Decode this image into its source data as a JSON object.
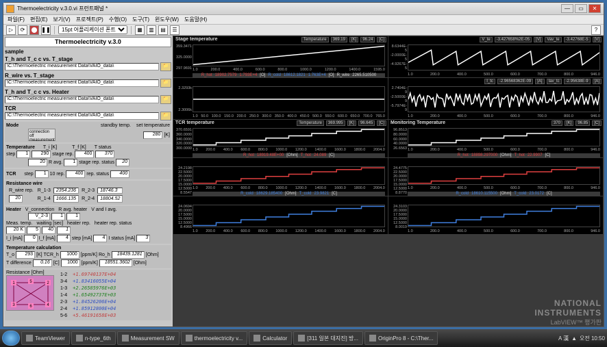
{
  "window": {
    "title": "Thermoelectricity v.3.0.vi 프런트패널 *",
    "menus": [
      "파일(F)",
      "편집(E)",
      "보기(V)",
      "프로젝트(P)",
      "수행(O)",
      "도구(T)",
      "윈도우(W)",
      "도움말(H)"
    ]
  },
  "toolbar": {
    "font": "15pt 어플리케이션 폰트"
  },
  "header": "Thermoelectricity v.3.0",
  "sample_label": "sample",
  "paths": {
    "p1_title": "T_h and T_c c vs. T_stage",
    "p1": "\\C:\\Thermoelectric measurement Data\\VAIO_data\\",
    "p2_title": "R_wire vs. T_stage",
    "p2": "\\C:\\Thermoelectric measurement Data\\VAIO_data\\",
    "p3_title": "T_h and T_c c vs. Heater",
    "p3": "\\C:\\Thermoelectric measurement Data\\VAIO_data\\",
    "p4_title": "TCR",
    "p4": "\\C:\\Thermoelectric measurement Data\\VAIO_data\\"
  },
  "mode": {
    "label": "Mode",
    "opt1": "standby temp.",
    "opt2": "connection off",
    "opt3": "measurement",
    "set_temp_label": "set temperature",
    "set_temp": "280",
    "set_temp_unit": "[K]"
  },
  "temperature": {
    "label": "Temperature",
    "step_label": "step",
    "step": "1",
    "Ti_label": "T_i [K]",
    "Ti": "290",
    "stagerep_label": "stage rep.",
    "stagerep": "20",
    "Tf_label": "T_f [K]",
    "Tf": "400",
    "Ravg_label": "R avg.",
    "Ravg": "1",
    "Tstatus_label": "T status",
    "Tstatus": "370",
    "stagerep_status_label": "stage rep. status",
    "stagerep_status": "20",
    "rep_status_label": "rep. status",
    "rep_status": "400"
  },
  "tcr": {
    "label": "TCR",
    "step": "1",
    "step_label": "step",
    "rep_label": "10 rep.",
    "rep": "400"
  },
  "resistance": {
    "label": "Resistance wire",
    "Rwire_label": "R_wire rep.",
    "Rwire": "20",
    "R13_label": "R_1-3",
    "R13": "2354.236",
    "R23_label": "R_2-3",
    "R23": "18746.3",
    "R14_label": "R_1-4",
    "R14": "1666.135",
    "R24_label": "R_2-4",
    "R24": "18804.52"
  },
  "heater": {
    "label": "Heater",
    "Vconn_label": "V_connection",
    "Vconn": "V_2-3",
    "Ravgheater_label": "R avg. heater",
    "Ravgheater": "1",
    "Vandiavg_label": "V and I avg.",
    "Vandiavg": "1",
    "meastemp_label": "Meas. temp.",
    "meastemp": "20 K",
    "waiting_label": "waiting [sec]",
    "waiting": "5",
    "heaterrep_label": "heater rep.",
    "heaterrep": "40",
    "heaterrep_status_label": "heater rep. status",
    "heaterrep_status": "1",
    "Ii_label": "I_i [mA]",
    "Ii": "0",
    "If_label": "I_f [mA]",
    "If": "4",
    "step_label": "step [mA]",
    "step": "4",
    "Istatus_label": "I status [mA]",
    "Istatus": "3"
  },
  "tempcalc": {
    "label": "Temperature calculation",
    "To_label": "T_o",
    "To": "293",
    "To_unit": "[K]",
    "TCRh_label": "TCR_h",
    "TCRh": "1000",
    "TCRh_unit": "[ppm/K]",
    "Roh_label": "Ro_h",
    "Roh": "18439.1281",
    "Roh_unit": "[Ohm]",
    "Tdiff_label": "T difference",
    "Tdiff": "0.16",
    "Tdiff_unit": "[C]",
    "TCRc": "1000",
    "TCRc_unit": "[ppm/K]",
    "Roc": "18551.3602",
    "Roc_unit": "[Ohm]"
  },
  "res_list": {
    "label": "Resistance [Ohm]",
    "rows": [
      {
        "k": "1-2",
        "v": "+1.69740137E+04"
      },
      {
        "k": "3-4",
        "v": "+1.83416055E+04"
      },
      {
        "k": "1-3",
        "v": "+2.26585976E+03"
      },
      {
        "k": "1-4",
        "v": "+1.65492737E+03"
      },
      {
        "k": "2-3",
        "v": "+1.84526206E+04"
      },
      {
        "k": "2-4",
        "v": "+1.85912800E+04"
      },
      {
        "k": "5-6",
        "v": "+5.46191658E+03"
      }
    ]
  },
  "charts": {
    "c1": {
      "title": "Stage temperature",
      "readout_l": "Temperature",
      "readout_v1": "369.19",
      "readout_u1": "[K]",
      "readout_v2": "96.24",
      "readout_u2": "[C]",
      "y": [
        "359.3471",
        "325.0000",
        "297.9691"
      ],
      "x": [
        "1.0",
        "200.0",
        "400.0",
        "600.0",
        "800.0",
        "1000.0",
        "1200.0",
        "1400.0",
        "1595.0"
      ],
      "color": "#ffffff",
      "type": "line-rising",
      "bottom": [
        {
          "cls": "r",
          "t": "R_hot"
        },
        {
          "cls": "r",
          "t": "18902.7579"
        },
        {
          "cls": "r",
          "t": "1.793E+4"
        },
        {
          "cls": "w",
          "t": "[O]"
        },
        {
          "cls": "b",
          "t": "R_cold"
        },
        {
          "cls": "b",
          "t": "18612.1821"
        },
        {
          "cls": "b",
          "t": "1.763E+4"
        },
        {
          "cls": "w",
          "t": "[O]"
        },
        {
          "cls": "w",
          "t": "R_wire"
        },
        {
          "cls": "w",
          "t": "2265.510500"
        }
      ]
    },
    "c2": {
      "title": "",
      "readout_l": "V_te",
      "readout_v1": "-3.427658%2E-05",
      "readout_u1": "[V]",
      "readout_l2": "Vav_te",
      "readout_v2": "-3.42768E-5",
      "readout_u2": "[V]",
      "y": [
        "8.6344E-5",
        "-2.0000E-5",
        "-4.9267E-5"
      ],
      "x": [
        "1.0",
        "200.0",
        "400.0",
        "500.0",
        "600.0",
        "700.0",
        "800.0",
        "946.0"
      ],
      "color": "#ffffff",
      "type": "sawtooth"
    },
    "c3": {
      "title": "",
      "y": [
        "2.3293k",
        "2.3006k"
      ],
      "x": [
        "1.0",
        "50.0",
        "100.0",
        "150.0",
        "200.0",
        "250.0",
        "300.0",
        "350.0",
        "400.0",
        "450.0",
        "500.0",
        "550.0",
        "600.0",
        "650.0",
        "700.0",
        "765.0"
      ],
      "color": "#ffffff",
      "type": "flat"
    },
    "c4": {
      "title": "",
      "readout_l": "I_tc",
      "readout_v1": "-2.96568362E-09",
      "readout_u1": "[A]",
      "readout_l2": "Iav_tc",
      "readout_v2": "-2.95638E-9",
      "readout_u2": "[A]",
      "y": [
        "2.7404E-9",
        "-2.5000E-9",
        "-5.7974E-9"
      ],
      "x": [
        "1.0",
        "200.0",
        "400.0",
        "500.0",
        "600.0",
        "700.0",
        "800.0",
        "946.0"
      ],
      "color": "#ffffff",
      "type": "noise"
    },
    "c5": {
      "title": "TCR temperature",
      "readout_l": "Temperature",
      "readout_v1": "369.995",
      "readout_u1": "[K]",
      "readout_v2": "96.645",
      "readout_u2": "[C]",
      "y": [
        "370.6591",
        "360.0000",
        "340.0000",
        "320.0000",
        "300.0000"
      ],
      "x": [
        "1.0",
        "200.0",
        "400.0",
        "600.0",
        "800.0",
        "1000.0",
        "1200.0",
        "1400.0",
        "1600.0",
        "1800.0",
        "2004.0"
      ],
      "color": "#ffffff",
      "type": "steps",
      "bottom": [
        {
          "cls": "r",
          "t": "R_hot"
        },
        {
          "cls": "r",
          "t": "18919.48E+00"
        },
        {
          "cls": "w",
          "t": "[Ohm]"
        },
        {
          "cls": "r",
          "t": "T_hot"
        },
        {
          "cls": "r",
          "t": "24.089"
        },
        {
          "cls": "w",
          "t": "[C]"
        }
      ]
    },
    "c6": {
      "title": "Monitoring Temperature",
      "readout_v1": "370",
      "readout_u1": "[K]",
      "readout_v2": "96.85",
      "readout_u2": "[C]",
      "y": [
        "96.8513",
        "80.0000",
        "60.0000",
        "40.0000",
        "26.6563"
      ],
      "x": [
        "1.0",
        "200.0",
        "400.0",
        "500.0",
        "600.0",
        "700.0",
        "800.0",
        "946.0"
      ],
      "color": "#ffffff",
      "type": "steps",
      "bottom": [
        {
          "cls": "r",
          "t": "R_hot"
        },
        {
          "cls": "r",
          "t": "18898.297000"
        },
        {
          "cls": "w",
          "t": "[Ohm]"
        },
        {
          "cls": "r",
          "t": "T_hot"
        },
        {
          "cls": "r",
          "t": "22.9907"
        },
        {
          "cls": "w",
          "t": "[C]"
        }
      ]
    },
    "c7": {
      "y": [
        "24.2198",
        "22.5000",
        "20.0000",
        "17.5000",
        "15.0000",
        "12.5000",
        "8.5547"
      ],
      "x": [
        "1.0",
        "200.0",
        "400.0",
        "600.0",
        "800.0",
        "1000.0",
        "1200.0",
        "1400.0",
        "1600.0",
        "1800.0",
        "2004.0"
      ],
      "color": "#e04040",
      "type": "steps",
      "bottom": [
        {
          "cls": "b",
          "t": "R_cold"
        },
        {
          "cls": "b",
          "t": "18629.185400"
        },
        {
          "cls": "w",
          "t": "[Ohm]"
        },
        {
          "cls": "b",
          "t": "T_cold"
        },
        {
          "cls": "b",
          "t": "23.9821"
        },
        {
          "cls": "w",
          "t": "[C]"
        }
      ]
    },
    "c8": {
      "y": [
        "24.4775",
        "22.5000",
        "20.0000",
        "17.5000",
        "15.0000",
        "12.5000",
        "8.8770"
      ],
      "x": [
        "1.0",
        "200.0",
        "400.0",
        "500.0",
        "600.0",
        "700.0",
        "800.0",
        "946.0"
      ],
      "color": "#e04040",
      "type": "steps",
      "bottom": [
        {
          "cls": "b",
          "t": "R_cold"
        },
        {
          "cls": "b",
          "t": "18610.115500"
        },
        {
          "cls": "w",
          "t": "[Ohm]"
        },
        {
          "cls": "b",
          "t": "T_cold"
        },
        {
          "cls": "b",
          "t": "23.0172"
        },
        {
          "cls": "w",
          "t": "[C]"
        }
      ]
    },
    "c9": {
      "y": [
        "24.0694",
        "20.0000",
        "17.5000",
        "15.0000",
        "12.5000",
        "8.4966"
      ],
      "x": [
        "1.0",
        "200.0",
        "400.0",
        "600.0",
        "800.0",
        "1000.0",
        "1200.0",
        "1400.0",
        "1600.0",
        "1800.0",
        "2004.0"
      ],
      "color": "#4080e0",
      "type": "steps"
    },
    "c10": {
      "y": [
        "24.3103",
        "20.0000",
        "17.5000",
        "15.0000",
        "12.5000",
        "8.0019"
      ],
      "x": [
        "1.0",
        "200.0",
        "400.0",
        "500.0",
        "600.0",
        "700.0",
        "800.0",
        "946.0"
      ],
      "color": "#4080e0",
      "type": "steps"
    }
  },
  "ni_logo": {
    "l1": "NATIONAL",
    "l2": "INSTRUMENTS",
    "l3": "LabVIEW™ 평가판"
  },
  "taskbar": {
    "items": [
      "TeamViewer",
      "n-type_6th",
      "Measurement SW",
      "thermoelectricity v...",
      "Calculator",
      "[311 일본 대지진] 방...",
      "OriginPro 8 - C:\\Ther..."
    ],
    "tray": "A 漢",
    "time": "오전 10:50"
  }
}
